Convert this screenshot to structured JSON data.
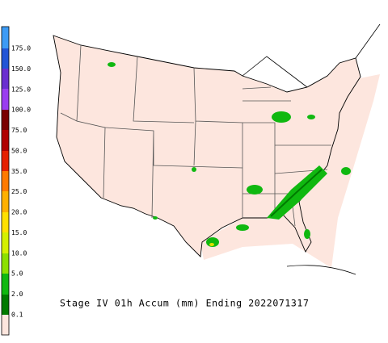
{
  "legend": {
    "labels": [
      "175.0",
      "150.0",
      "125.0",
      "100.0",
      "75.0",
      "50.0",
      "35.0",
      "25.0",
      "20.0",
      "15.0",
      "10.0",
      "5.0",
      "2.0",
      "0.1"
    ]
  },
  "caption": "Stage IV 01h Accum (mm) Ending 2022071317"
}
